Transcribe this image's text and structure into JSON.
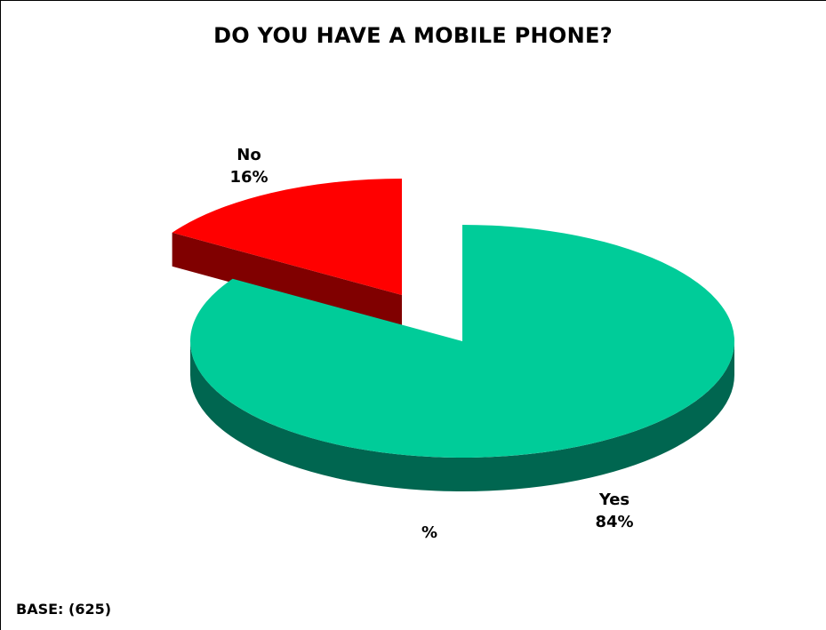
{
  "chart_data": {
    "type": "pie",
    "title": "DO YOU HAVE A MOBILE PHONE?",
    "unit_label": "%",
    "base_note": "BASE: (625)",
    "slices": [
      {
        "label": "No",
        "value": 16,
        "value_label": "16%",
        "color": "#ff0000",
        "side_color": "#800000",
        "exploded": true
      },
      {
        "label": "Yes",
        "value": 84,
        "value_label": "84%",
        "color": "#00cc99",
        "side_color": "#006650",
        "exploded": false
      }
    ]
  }
}
